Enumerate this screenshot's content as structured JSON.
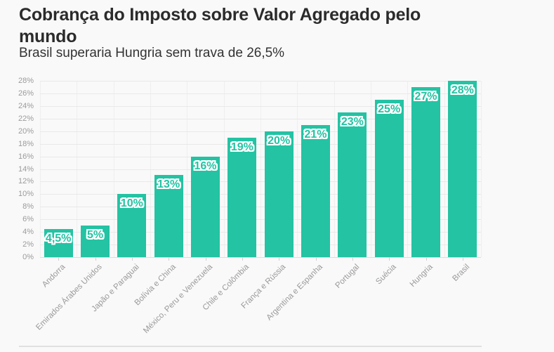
{
  "header": {
    "title": "Cobrança do Imposto sobre Valor Agregado pelo mundo",
    "subtitle": "Brasil superaria Hungria sem trava de 26,5%"
  },
  "colors": {
    "bar": "#23c3a3",
    "background": "#f9f9f9",
    "gridline": "#e9e9e9",
    "axis_text": "#9b9b9b",
    "title_text": "#2b2b2b",
    "subtitle_text": "#333333",
    "divider": "#e0e0e0",
    "value_label_outline": "#ffffff"
  },
  "chart_data": {
    "type": "bar",
    "title": "Cobrança do Imposto sobre Valor Agregado pelo mundo",
    "subtitle": "Brasil superaria Hungria sem trava de 26,5%",
    "categories": [
      "Andorra",
      "Emirados Árabes Unidos",
      "Japão e Paraguai",
      "Bolívia e China",
      "México, Peru e Venezuela",
      "Chile e Colômbia",
      "França e Rússia",
      "Argentina e Espanha",
      "Portugal",
      "Suécia",
      "Hungria",
      "Brasil"
    ],
    "values": [
      4.5,
      5,
      10,
      13,
      16,
      19,
      20,
      21,
      23,
      25,
      27,
      28
    ],
    "value_labels": [
      "4,5%",
      "5%",
      "10%",
      "13%",
      "16%",
      "19%",
      "20%",
      "21%",
      "23%",
      "25%",
      "27%",
      "28%"
    ],
    "xlabel": "",
    "ylabel": "",
    "ylim": [
      0,
      28
    ],
    "ytick_step": 2,
    "ytick_suffix": "%",
    "grid": true,
    "legend": "none",
    "bar_color": "#23c3a3"
  }
}
